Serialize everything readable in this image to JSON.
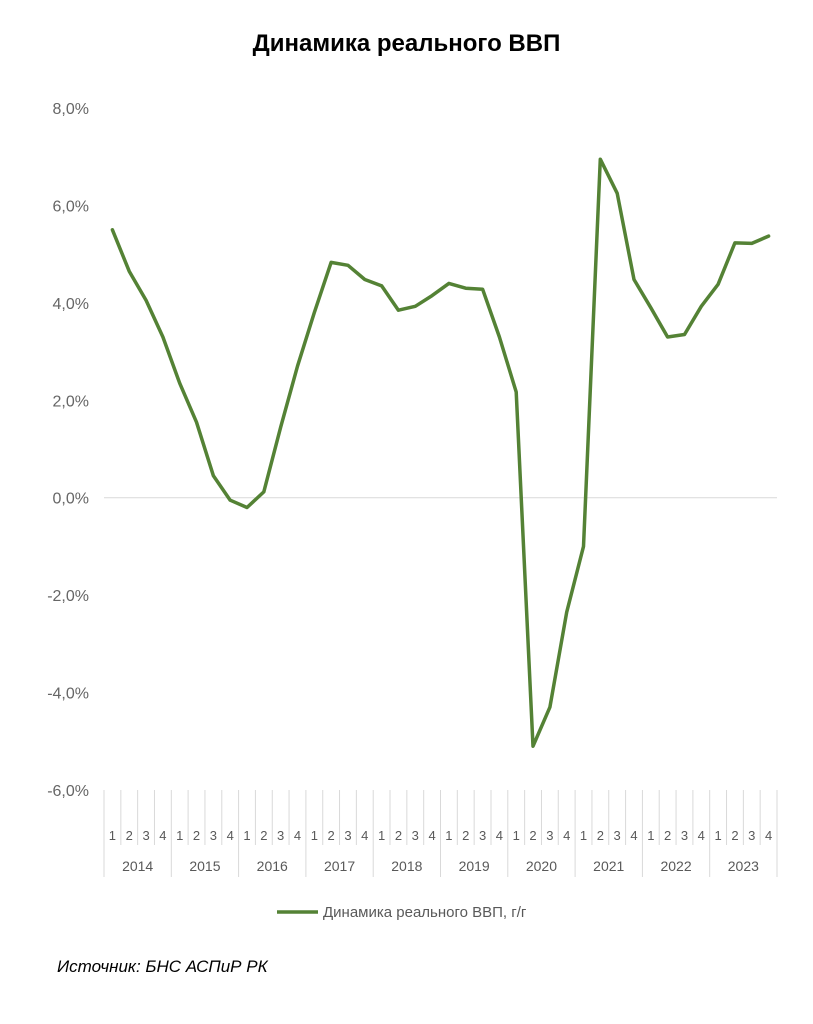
{
  "chart_data": {
    "type": "line",
    "title": "Динамика реального ВВП",
    "xlabel": "",
    "ylabel": "",
    "ylim": [
      -6,
      8
    ],
    "yticks": [
      -6,
      -4,
      -2,
      0,
      2,
      4,
      6,
      8
    ],
    "ytick_labels": [
      "-6,0%",
      "-4,0%",
      "-2,0%",
      "0,0%",
      "2,0%",
      "4,0%",
      "6,0%",
      "8,0%"
    ],
    "years": [
      "2014",
      "2015",
      "2016",
      "2017",
      "2018",
      "2019",
      "2020",
      "2021",
      "2022",
      "2023"
    ],
    "quarters": [
      "1",
      "2",
      "3",
      "4"
    ],
    "grid": "zero-line only",
    "legend_position": "bottom",
    "series": [
      {
        "name": "Динамика реального ВВП, г/г",
        "color": "#548235",
        "values": [
          5.5,
          4.65,
          4.05,
          3.3,
          2.35,
          1.55,
          0.45,
          -0.05,
          -0.2,
          0.12,
          1.45,
          2.7,
          3.8,
          4.83,
          4.77,
          4.48,
          4.35,
          3.85,
          3.93,
          4.15,
          4.4,
          4.3,
          4.28,
          3.3,
          2.17,
          -5.1,
          -4.3,
          -2.35,
          -1.0,
          6.95,
          6.25,
          4.48,
          3.9,
          3.3,
          3.35,
          3.93,
          4.38,
          5.23,
          5.22,
          5.37
        ]
      }
    ]
  },
  "source_note": "Источник: БНС АСПиР РК"
}
